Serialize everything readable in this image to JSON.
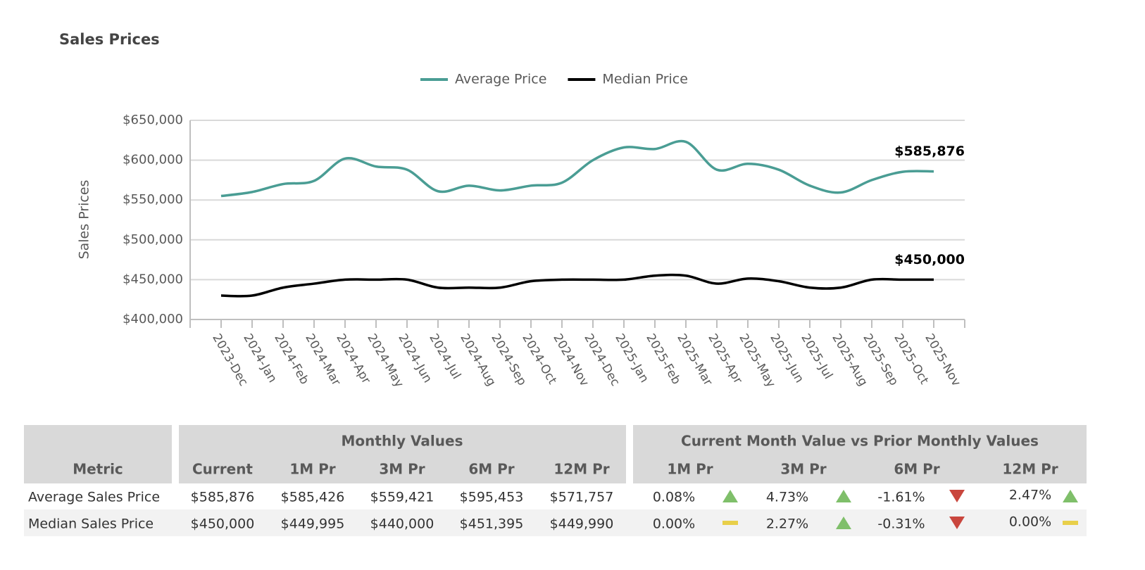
{
  "chart_data": {
    "type": "line",
    "title": "Sales Prices",
    "ylabel": "Sales Prices",
    "categories": [
      "2023-Dec",
      "2024-Jan",
      "2024-Feb",
      "2024-Mar",
      "2024-Apr",
      "2024-May",
      "2024-Jun",
      "2024-Jul",
      "2024-Aug",
      "2024-Sep",
      "2024-Oct",
      "2024-Nov",
      "2024-Dec",
      "2025-Jan",
      "2025-Feb",
      "2025-Mar",
      "2025-Apr",
      "2025-May",
      "2025-Jun",
      "2025-Jul",
      "2025-Aug",
      "2025-Sep",
      "2025-Oct",
      "2025-Nov"
    ],
    "series": [
      {
        "name": "Average Price",
        "color": "#4a9d94",
        "values": [
          555000,
          560000,
          570000,
          574000,
          602000,
          592000,
          588000,
          561000,
          568000,
          562000,
          568000,
          571757,
          600000,
          616000,
          614000,
          623000,
          588000,
          595453,
          588000,
          568000,
          559421,
          575000,
          585426,
          585876
        ],
        "value_labels": [
          null,
          null,
          null,
          null,
          null,
          null,
          null,
          null,
          null,
          null,
          null,
          null,
          null,
          null,
          null,
          null,
          null,
          null,
          null,
          null,
          null,
          null,
          null,
          "$585,876"
        ]
      },
      {
        "name": "Median Price",
        "color": "#000000",
        "values": [
          430000,
          430000,
          440000,
          445000,
          450000,
          450000,
          450000,
          440000,
          440000,
          440000,
          448000,
          449990,
          450000,
          450000,
          455000,
          455000,
          445000,
          451395,
          448000,
          440000,
          440000,
          450000,
          449995,
          450000
        ],
        "value_labels": [
          null,
          null,
          null,
          null,
          null,
          null,
          null,
          null,
          null,
          null,
          null,
          null,
          null,
          null,
          null,
          null,
          null,
          null,
          null,
          null,
          null,
          null,
          null,
          "$450,000"
        ]
      }
    ],
    "ylim": [
      400000,
      650000
    ],
    "yticks": [
      {
        "value": 400000,
        "label": "$400,000"
      },
      {
        "value": 450000,
        "label": "$450,000"
      },
      {
        "value": 500000,
        "label": "$500,000"
      },
      {
        "value": 550000,
        "label": "$550,000"
      },
      {
        "value": 600000,
        "label": "$600,000"
      },
      {
        "value": 650000,
        "label": "$650,000"
      }
    ],
    "grid": true,
    "legend": "top"
  },
  "table": {
    "group_headers": [
      "Monthly Values",
      "Current Month Value vs Prior Monthly Values"
    ],
    "columns": [
      "Metric",
      "Current",
      "1M Pr",
      "3M Pr",
      "6M Pr",
      "12M Pr",
      "1M Pr",
      "3M Pr",
      "6M Pr",
      "12M Pr"
    ],
    "rows": [
      {
        "cells": [
          "Average Sales Price",
          "$585,876",
          "$585,426",
          "$559,421",
          "$595,453",
          "$571,757",
          "0.08%",
          "4.73%",
          "-1.61%",
          "2.47%"
        ],
        "trends": [
          "up",
          "up",
          "down",
          "up"
        ]
      },
      {
        "cells": [
          "Median Sales Price",
          "$450,000",
          "$449,995",
          "$440,000",
          "$451,395",
          "$449,990",
          "0.00%",
          "2.27%",
          "-0.31%",
          "0.00%"
        ],
        "trends": [
          "flat",
          "up",
          "down",
          "flat"
        ]
      }
    ]
  }
}
